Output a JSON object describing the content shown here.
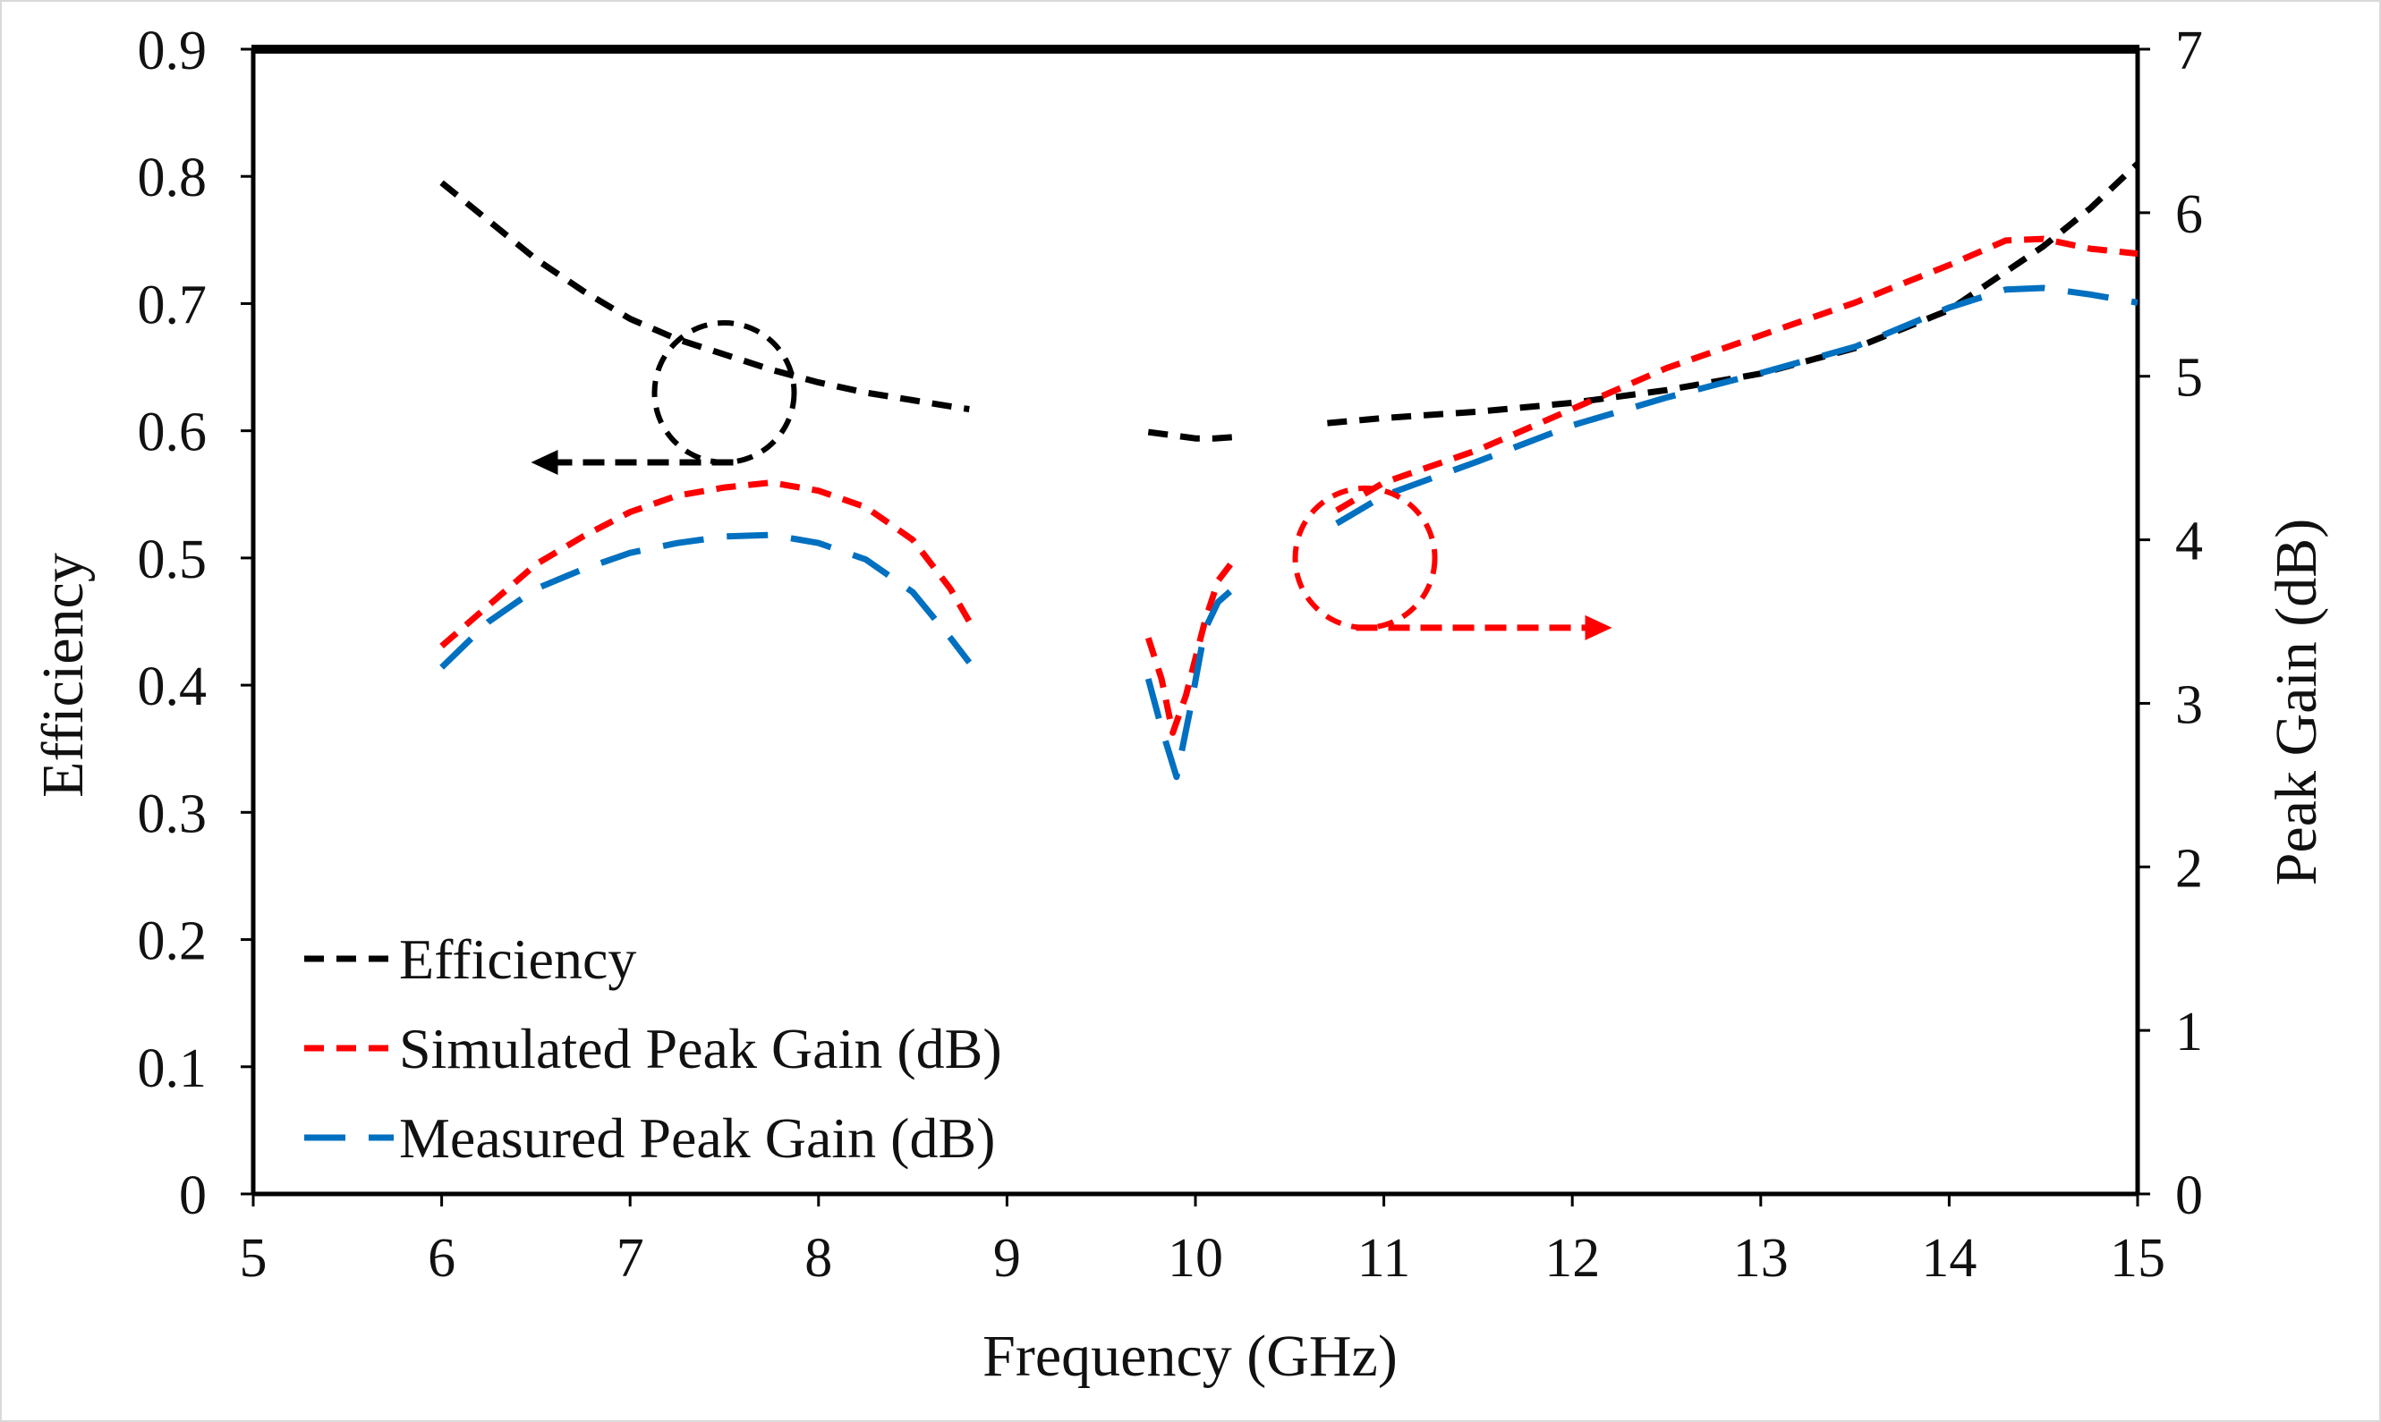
{
  "chart_data": {
    "type": "line",
    "title": "",
    "xlabel": "Frequency (GHz)",
    "ylabel": "Efficiency",
    "y2label": "Peak Gain (dB)",
    "xlim": [
      5,
      15
    ],
    "ylim": [
      0,
      0.9
    ],
    "y2lim": [
      0,
      7
    ],
    "x_ticks": [
      "5",
      "6",
      "7",
      "8",
      "9",
      "10",
      "11",
      "12",
      "13",
      "14",
      "15"
    ],
    "y_ticks": [
      "0",
      "0.1",
      "0.2",
      "0.3",
      "0.4",
      "0.5",
      "0.6",
      "0.7",
      "0.8",
      "0.9"
    ],
    "y2_ticks": [
      "0",
      "1",
      "2",
      "3",
      "4",
      "5",
      "6",
      "7"
    ],
    "grid": false,
    "legend_position": "bottom-left",
    "series": [
      {
        "name": "Efficiency",
        "axis": "left",
        "color": "#000000",
        "dash": "short",
        "segments": [
          [
            [
              6.0,
              0.795
            ],
            [
              6.25,
              0.765
            ],
            [
              6.5,
              0.735
            ],
            [
              6.75,
              0.71
            ],
            [
              7.0,
              0.688
            ],
            [
              7.25,
              0.672
            ],
            [
              7.5,
              0.66
            ],
            [
              7.75,
              0.648
            ],
            [
              8.0,
              0.638
            ],
            [
              8.25,
              0.63
            ],
            [
              8.5,
              0.624
            ],
            [
              8.75,
              0.618
            ],
            [
              8.8,
              0.617
            ]
          ],
          [
            [
              9.75,
              0.599
            ],
            [
              9.85,
              0.597
            ],
            [
              10.0,
              0.594
            ],
            [
              10.1,
              0.594
            ],
            [
              10.2,
              0.595
            ]
          ],
          [
            [
              10.7,
              0.606
            ],
            [
              11.0,
              0.61
            ],
            [
              11.5,
              0.615
            ],
            [
              12.0,
              0.622
            ],
            [
              12.5,
              0.632
            ],
            [
              13.0,
              0.645
            ],
            [
              13.5,
              0.665
            ],
            [
              14.0,
              0.695
            ],
            [
              14.5,
              0.745
            ],
            [
              14.75,
              0.775
            ],
            [
              15.0,
              0.81
            ]
          ]
        ]
      },
      {
        "name": "Simulated Peak Gain (dB)",
        "axis": "right",
        "color": "#ff0000",
        "dash": "short",
        "segments": [
          [
            [
              6.0,
              3.35
            ],
            [
              6.25,
              3.6
            ],
            [
              6.5,
              3.85
            ],
            [
              6.75,
              4.02
            ],
            [
              7.0,
              4.17
            ],
            [
              7.25,
              4.27
            ],
            [
              7.5,
              4.32
            ],
            [
              7.75,
              4.35
            ],
            [
              8.0,
              4.3
            ],
            [
              8.25,
              4.2
            ],
            [
              8.5,
              4.0
            ],
            [
              8.7,
              3.7
            ],
            [
              8.8,
              3.5
            ]
          ],
          [
            [
              9.75,
              3.4
            ],
            [
              9.82,
              3.15
            ],
            [
              9.88,
              2.82
            ],
            [
              9.95,
              3.05
            ],
            [
              10.05,
              3.5
            ],
            [
              10.12,
              3.75
            ],
            [
              10.2,
              3.87
            ]
          ],
          [
            [
              10.75,
              4.18
            ],
            [
              11.0,
              4.35
            ],
            [
              11.5,
              4.55
            ],
            [
              12.0,
              4.8
            ],
            [
              12.5,
              5.05
            ],
            [
              13.0,
              5.25
            ],
            [
              13.5,
              5.45
            ],
            [
              14.0,
              5.68
            ],
            [
              14.3,
              5.83
            ],
            [
              14.5,
              5.84
            ],
            [
              14.75,
              5.78
            ],
            [
              15.0,
              5.75
            ]
          ]
        ]
      },
      {
        "name": "Measured Peak Gain (dB)",
        "axis": "right",
        "color": "#0070c0",
        "dash": "long",
        "segments": [
          [
            [
              6.0,
              3.22
            ],
            [
              6.25,
              3.5
            ],
            [
              6.5,
              3.7
            ],
            [
              6.75,
              3.82
            ],
            [
              7.0,
              3.92
            ],
            [
              7.25,
              3.98
            ],
            [
              7.5,
              4.02
            ],
            [
              7.75,
              4.03
            ],
            [
              8.0,
              3.98
            ],
            [
              8.25,
              3.88
            ],
            [
              8.5,
              3.68
            ],
            [
              8.7,
              3.4
            ],
            [
              8.8,
              3.25
            ]
          ],
          [
            [
              9.75,
              3.15
            ],
            [
              9.82,
              2.85
            ],
            [
              9.9,
              2.55
            ],
            [
              9.97,
              2.95
            ],
            [
              10.05,
              3.45
            ],
            [
              10.12,
              3.62
            ],
            [
              10.2,
              3.7
            ]
          ],
          [
            [
              10.75,
              4.1
            ],
            [
              11.0,
              4.27
            ],
            [
              11.5,
              4.48
            ],
            [
              12.0,
              4.7
            ],
            [
              12.5,
              4.87
            ],
            [
              13.0,
              5.02
            ],
            [
              13.5,
              5.18
            ],
            [
              14.0,
              5.42
            ],
            [
              14.3,
              5.53
            ],
            [
              14.5,
              5.54
            ],
            [
              14.75,
              5.5
            ],
            [
              15.0,
              5.45
            ]
          ]
        ]
      }
    ],
    "annotations": [
      {
        "type": "circle",
        "target": "Efficiency",
        "center": [
          7.5,
          0.63
        ],
        "arrow": "left",
        "color": "#000000"
      },
      {
        "type": "circle",
        "target": "Simulated Peak Gain (dB)",
        "center": [
          10.9,
          0.5
        ],
        "arrow": "right",
        "color": "#ff0000"
      }
    ]
  }
}
